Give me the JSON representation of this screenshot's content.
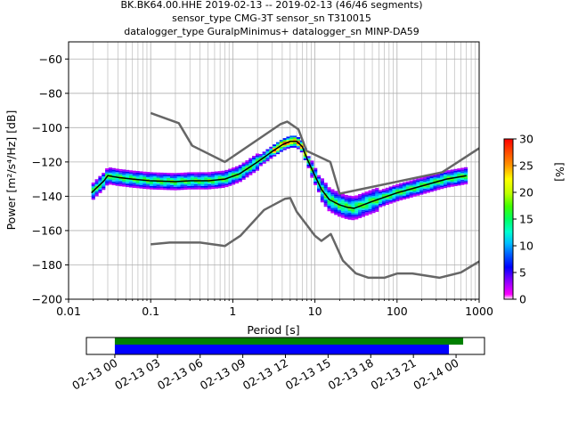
{
  "header": {
    "line1": "BK.BK64.00.HHE   2019-02-13 -- 2019-02-13  (46/46 segments)",
    "line2": "sensor_type CMG-3T sensor_sn T310015",
    "line3": "datalogger_type GuralpMinimus+ datalogger_sn MINP-DA59"
  },
  "chart_data": [
    {
      "type": "heatmap",
      "name_of_plot": "PPSD",
      "xscale": "log",
      "xlim": [
        0.01,
        1000
      ],
      "ylim": [
        -200,
        -50
      ],
      "x_ticks": [
        {
          "value": 0.01,
          "label": "0.01"
        },
        {
          "value": 0.1,
          "label": "0.1"
        },
        {
          "value": 1,
          "label": "1"
        },
        {
          "value": 10,
          "label": "10"
        },
        {
          "value": 100,
          "label": "100"
        },
        {
          "value": 1000,
          "label": "1000"
        }
      ],
      "y_ticks": [
        {
          "value": -60,
          "label": "−60"
        },
        {
          "value": -80,
          "label": "−80"
        },
        {
          "value": -100,
          "label": "−100"
        },
        {
          "value": -120,
          "label": "−120"
        },
        {
          "value": -140,
          "label": "−140"
        },
        {
          "value": -160,
          "label": "−160"
        },
        {
          "value": -180,
          "label": "−180"
        },
        {
          "value": -200,
          "label": "−200"
        }
      ],
      "xlabel": "Period [s]",
      "ylabel": "Power [m²/s⁴/Hz] [dB]",
      "grid": true,
      "noise_models": {
        "high": [
          [
            0.1,
            -91.5
          ],
          [
            0.22,
            -97.4
          ],
          [
            0.32,
            -110.5
          ],
          [
            0.8,
            -120
          ],
          [
            3.8,
            -98
          ],
          [
            4.6,
            -96.5
          ],
          [
            6.3,
            -101
          ],
          [
            7.9,
            -113.5
          ],
          [
            15.4,
            -120
          ],
          [
            20,
            -138.5
          ],
          [
            354.8,
            -126
          ],
          [
            1000,
            -112
          ]
        ],
        "low": [
          [
            0.1,
            -168
          ],
          [
            0.17,
            -167
          ],
          [
            0.4,
            -167
          ],
          [
            0.8,
            -169
          ],
          [
            1.24,
            -163
          ],
          [
            2.4,
            -148
          ],
          [
            4.3,
            -141.5
          ],
          [
            5,
            -141
          ],
          [
            6,
            -149
          ],
          [
            10,
            -163
          ],
          [
            12,
            -166
          ],
          [
            15.6,
            -162
          ],
          [
            21.9,
            -177.5
          ],
          [
            31.6,
            -185
          ],
          [
            45,
            -187.5
          ],
          [
            70,
            -187.5
          ],
          [
            101,
            -185
          ],
          [
            154,
            -185
          ],
          [
            328,
            -187.5
          ],
          [
            600,
            -184.4
          ],
          [
            1000,
            -178
          ]
        ]
      },
      "mean_curve": [
        [
          0.019,
          -138
        ],
        [
          0.022,
          -135
        ],
        [
          0.027,
          -131
        ],
        [
          0.03,
          -128
        ],
        [
          0.04,
          -129
        ],
        [
          0.06,
          -130
        ],
        [
          0.1,
          -131
        ],
        [
          0.2,
          -131.5
        ],
        [
          0.3,
          -131
        ],
        [
          0.5,
          -131
        ],
        [
          0.8,
          -130
        ],
        [
          1.2,
          -127
        ],
        [
          2,
          -120
        ],
        [
          3,
          -114
        ],
        [
          4,
          -110
        ],
        [
          5,
          -108
        ],
        [
          6,
          -108
        ],
        [
          7,
          -111
        ],
        [
          8,
          -118
        ],
        [
          10,
          -128
        ],
        [
          12,
          -136
        ],
        [
          15,
          -142
        ],
        [
          20,
          -145
        ],
        [
          25,
          -146.5
        ],
        [
          30,
          -147
        ],
        [
          50,
          -143
        ],
        [
          100,
          -138
        ],
        [
          200,
          -134
        ],
        [
          400,
          -130
        ],
        [
          700,
          -128
        ]
      ],
      "colorbar": {
        "min": 0,
        "max": 30,
        "label": "[%]",
        "ticks": [
          {
            "value": 0,
            "label": "0"
          },
          {
            "value": 5,
            "label": "5"
          },
          {
            "value": 10,
            "label": "10"
          },
          {
            "value": 15,
            "label": "15"
          },
          {
            "value": 20,
            "label": "20"
          },
          {
            "value": 25,
            "label": "25"
          },
          {
            "value": 30,
            "label": "30"
          }
        ]
      }
    },
    {
      "type": "timeline",
      "name_of_plot": "data coverage",
      "xlim": [
        "2019-02-12 22:00",
        "2019-02-14 02:00"
      ],
      "x_ticks": [
        {
          "value": "2019-02-13 00:00",
          "label": "02-13 00"
        },
        {
          "value": "2019-02-13 03:00",
          "label": "02-13 03"
        },
        {
          "value": "2019-02-13 06:00",
          "label": "02-13 06"
        },
        {
          "value": "2019-02-13 09:00",
          "label": "02-13 09"
        },
        {
          "value": "2019-02-13 12:00",
          "label": "02-13 12"
        },
        {
          "value": "2019-02-13 15:00",
          "label": "02-13 15"
        },
        {
          "value": "2019-02-13 18:00",
          "label": "02-13 18"
        },
        {
          "value": "2019-02-13 21:00",
          "label": "02-13 21"
        },
        {
          "value": "2019-02-14 00:00",
          "label": "02-14 00"
        }
      ],
      "bars": [
        {
          "start": "2019-02-13 00:00",
          "end": "2019-02-14 00:30",
          "color": "#008000"
        },
        {
          "start": "2019-02-13 00:00",
          "end": "2019-02-13 23:30",
          "color": "#0000ff"
        }
      ]
    }
  ]
}
